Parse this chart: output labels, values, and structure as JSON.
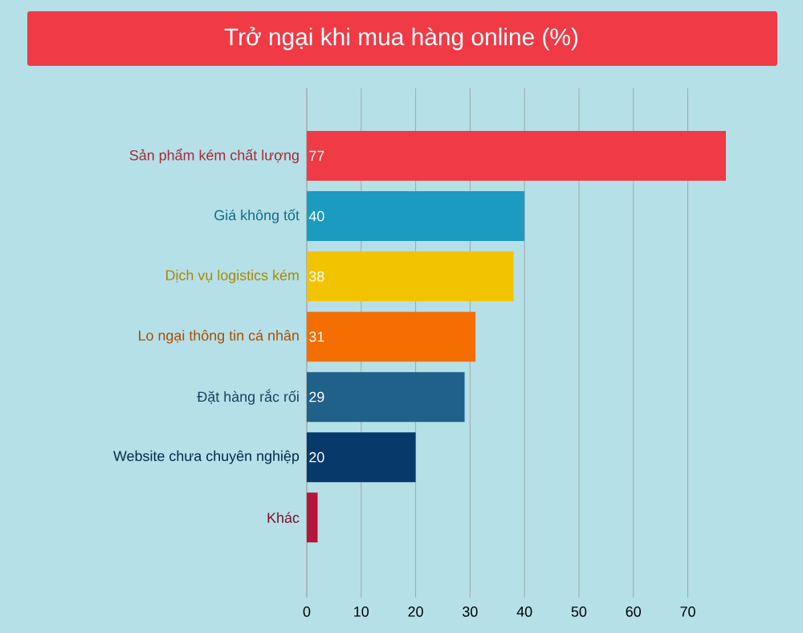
{
  "chart_data": {
    "type": "bar",
    "orientation": "horizontal",
    "title": "Trở ngại khi mua hàng online (%)",
    "categories": [
      "Sản phẩm kém chất lượng",
      "Giá không tốt",
      "Dịch vụ logistics kém",
      "Lo ngại thông tin cá nhân",
      "Đặt hàng rắc rối",
      "Website chưa chuyên nghiệp",
      "Khác"
    ],
    "values": [
      77,
      40,
      38,
      31,
      29,
      20,
      2
    ],
    "value_labels": [
      "77",
      "40",
      "38",
      "31",
      "29",
      "20",
      null
    ],
    "colors": [
      "#f03a46",
      "#1a9bbf",
      "#f2c300",
      "#f56e00",
      "#1f6189",
      "#073a6a",
      "#b5173a"
    ],
    "xlim": [
      0,
      77
    ],
    "xticks": [
      0,
      10,
      20,
      30,
      40,
      50,
      60,
      70
    ],
    "grid": "x"
  }
}
